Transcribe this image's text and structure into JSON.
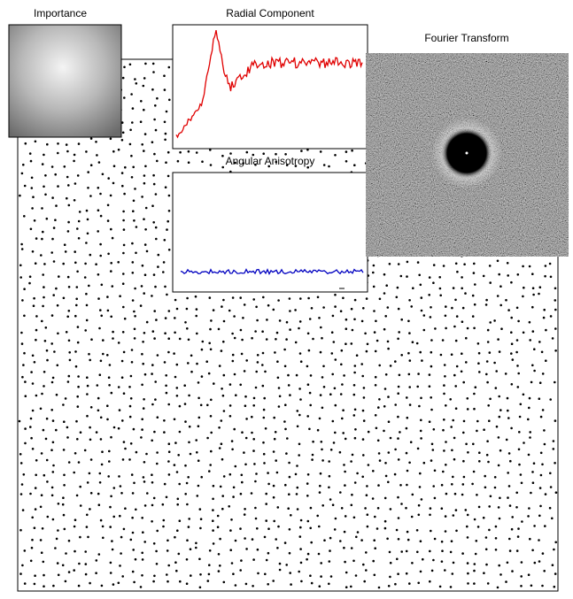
{
  "panels": {
    "importance": {
      "title": "Importance"
    },
    "radial": {
      "title": "Radial Component"
    },
    "angular": {
      "title": "Angular Anisotropy"
    },
    "fourier": {
      "title": "Fourier Transform"
    }
  }
}
